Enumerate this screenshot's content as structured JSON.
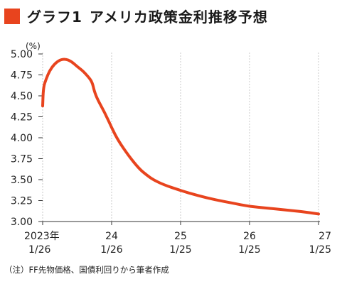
{
  "title": {
    "prefix": "グラフ1",
    "main": "アメリカ政策金利推移予想"
  },
  "note": "（注）FF先物価格、国債利回りから筆者作成",
  "colors": {
    "accent": "#e8441e",
    "grid": "#c8c8c8",
    "axis": "#333333"
  },
  "chart_data": {
    "type": "line",
    "unit_label": "(%)",
    "ylim": [
      3.0,
      5.0
    ],
    "y_ticks": [
      "3.00",
      "3.25",
      "3.50",
      "3.75",
      "4.00",
      "4.25",
      "4.50",
      "4.75",
      "5.00"
    ],
    "x_ticks": [
      {
        "line1": "2023年",
        "line2": "1/26"
      },
      {
        "line1": "24",
        "line2": "1/26"
      },
      {
        "line1": "25",
        "line2": "1/25"
      },
      {
        "line1": "26",
        "line2": "1/25"
      },
      {
        "line1": "27",
        "line2": "1/25"
      }
    ],
    "grid": "vertical",
    "series": [
      {
        "color": "#e8441e",
        "points": [
          [
            0.0,
            4.38
          ],
          [
            0.01,
            4.6
          ],
          [
            0.05,
            4.7
          ],
          [
            0.1,
            4.8
          ],
          [
            0.17,
            4.88
          ],
          [
            0.25,
            4.93
          ],
          [
            0.33,
            4.94
          ],
          [
            0.42,
            4.91
          ],
          [
            0.5,
            4.85
          ],
          [
            0.58,
            4.8
          ],
          [
            0.67,
            4.72
          ],
          [
            0.72,
            4.66
          ],
          [
            0.75,
            4.55
          ],
          [
            0.8,
            4.45
          ],
          [
            0.9,
            4.3
          ],
          [
            1.0,
            4.12
          ],
          [
            1.1,
            3.96
          ],
          [
            1.25,
            3.78
          ],
          [
            1.4,
            3.63
          ],
          [
            1.5,
            3.56
          ],
          [
            1.6,
            3.5
          ],
          [
            1.75,
            3.44
          ],
          [
            2.0,
            3.37
          ],
          [
            2.25,
            3.31
          ],
          [
            2.5,
            3.26
          ],
          [
            2.75,
            3.22
          ],
          [
            3.0,
            3.18
          ],
          [
            3.25,
            3.16
          ],
          [
            3.5,
            3.14
          ],
          [
            3.75,
            3.12
          ],
          [
            4.0,
            3.09
          ]
        ]
      }
    ]
  }
}
